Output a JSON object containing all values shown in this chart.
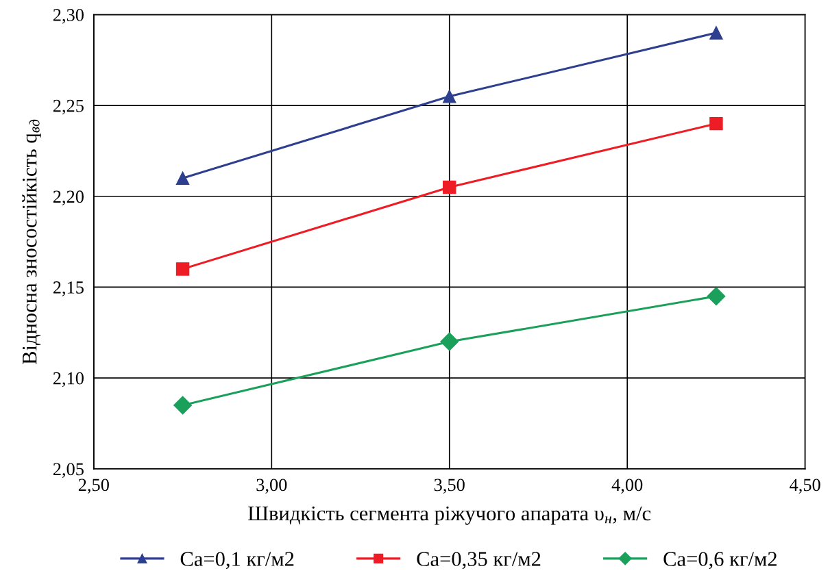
{
  "chart_data": {
    "type": "line",
    "xlabel": "Швидкість сегмента ріжучого апарата υ$_{н}$, м/с",
    "ylabel": "Відносна зносостійкість q$_{вд}$",
    "x": [
      2.75,
      3.5,
      4.25
    ],
    "series": [
      {
        "name": "Ca=0,1 кг/м2",
        "color": "#2e3f8f",
        "marker": "triangle",
        "values": [
          2.21,
          2.255,
          2.29
        ]
      },
      {
        "name": "Ca=0,35 кг/м2",
        "color": "#ee1c24",
        "marker": "square",
        "values": [
          2.16,
          2.205,
          2.24
        ]
      },
      {
        "name": "Ca=0,6 кг/м2",
        "color": "#1aa05a",
        "marker": "diamond",
        "values": [
          2.085,
          2.12,
          2.145
        ]
      }
    ],
    "xlim": [
      2.5,
      4.5
    ],
    "xticks": [
      {
        "value": 2.5,
        "label": "2,50"
      },
      {
        "value": 3.0,
        "label": "3,00"
      },
      {
        "value": 3.5,
        "label": "3,50"
      },
      {
        "value": 4.0,
        "label": "4,00"
      },
      {
        "value": 4.5,
        "label": "4,50"
      }
    ],
    "ylim": [
      2.05,
      2.3
    ],
    "yticks": [
      {
        "value": 2.05,
        "label": "2,05"
      },
      {
        "value": 2.1,
        "label": "2,10"
      },
      {
        "value": 2.15,
        "label": "2,15"
      },
      {
        "value": 2.2,
        "label": "2,20"
      },
      {
        "value": 2.25,
        "label": "2,25"
      },
      {
        "value": 2.3,
        "label": "2,30"
      }
    ],
    "grid": true,
    "legend": "bottom",
    "line_style": "solid"
  }
}
